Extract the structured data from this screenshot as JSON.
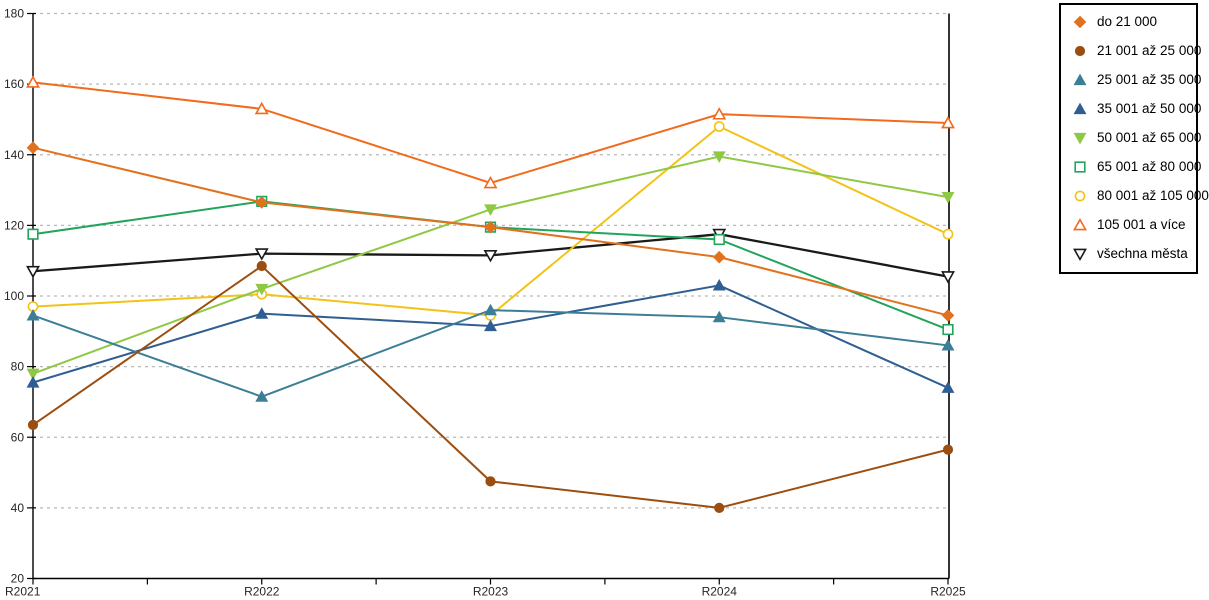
{
  "chart_data": {
    "type": "line",
    "title": "",
    "xlabel": "",
    "ylabel": "",
    "categories": [
      "R2021",
      "R2022",
      "R2023",
      "R2024",
      "R2025"
    ],
    "ylim": [
      20,
      180
    ],
    "ytick_step": 20,
    "y_tick_labels": [
      "20",
      "40",
      "60",
      "80",
      "100",
      "120",
      "140",
      "160",
      "180"
    ],
    "grid": "horizontal-dashed",
    "legend_position": "right-outside",
    "gridline_color": "#b9b9b9",
    "axis_color": "#000000",
    "series": [
      {
        "name": "do 21 000",
        "color": "#e2711d",
        "marker": "diamond",
        "marker_fill": "filled",
        "values": [
          142,
          126.5,
          119.5,
          111,
          94.5
        ]
      },
      {
        "name": "21 001 až 25 000",
        "color": "#9c4e10",
        "marker": "circle",
        "marker_fill": "filled",
        "values": [
          63.5,
          108.5,
          47.5,
          40,
          56.5
        ]
      },
      {
        "name": "25 001 až 35 000",
        "color": "#3d7e97",
        "marker": "triangle-up",
        "marker_fill": "filled",
        "values": [
          94.5,
          71.5,
          96,
          94,
          86
        ]
      },
      {
        "name": "35 001 až 50 000",
        "color": "#2f5e92",
        "marker": "triangle-up",
        "marker_fill": "filled",
        "values": [
          75.5,
          95,
          91.5,
          103,
          74
        ]
      },
      {
        "name": "50 001 až 65 000",
        "color": "#8fc843",
        "marker": "triangle-down",
        "marker_fill": "filled",
        "values": [
          78,
          102,
          124.5,
          139.5,
          128
        ]
      },
      {
        "name": "65 001 až 80 000",
        "color": "#21a45b",
        "marker": "square",
        "marker_fill": "open",
        "values": [
          117.5,
          126.8,
          119.5,
          116,
          90.5
        ]
      },
      {
        "name": "80 001 až 105 000",
        "color": "#f2c318",
        "marker": "circle",
        "marker_fill": "open",
        "values": [
          97,
          100.5,
          94.5,
          148,
          117.5
        ]
      },
      {
        "name": "105 001 a více",
        "color": "#f26a1c",
        "marker": "triangle-up",
        "marker_fill": "open",
        "values": [
          160.5,
          153,
          132,
          151.5,
          149
        ]
      },
      {
        "name": "všechna města",
        "color": "#1a1a1a",
        "marker": "triangle-down",
        "marker_fill": "open",
        "values": [
          107,
          112,
          111.5,
          117.5,
          105.5
        ]
      }
    ]
  }
}
